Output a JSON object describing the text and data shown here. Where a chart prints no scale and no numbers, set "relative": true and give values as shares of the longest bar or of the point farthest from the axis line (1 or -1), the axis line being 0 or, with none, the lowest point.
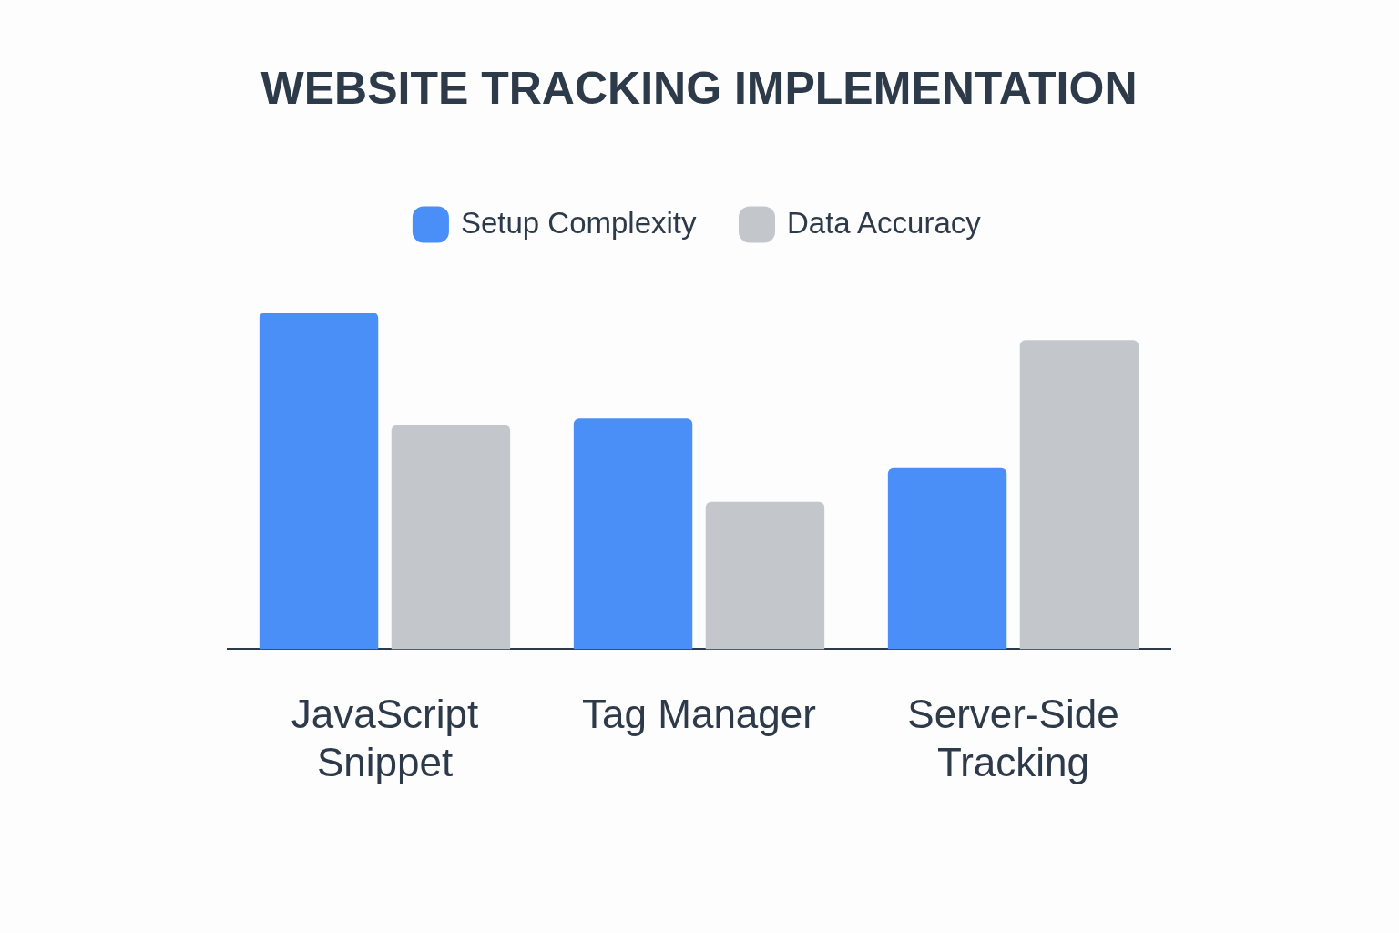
{
  "chart_data": {
    "type": "bar",
    "title": "WEBSITE TRACKING IMPLEMENTATION",
    "relative": true,
    "legend": "top",
    "grid": false,
    "categories": [
      "JavaScript Snippet",
      "Tag Manager",
      "Server-Side Tracking"
    ],
    "series": [
      {
        "name": "Setup Complexity",
        "color": "#4a8ff8",
        "values": [
          1,
          0.685,
          0.538
        ]
      },
      {
        "name": "Data Accuracy",
        "color": "#c3c7cc",
        "values": [
          0.666,
          0.4375,
          0.918
        ]
      }
    ]
  }
}
